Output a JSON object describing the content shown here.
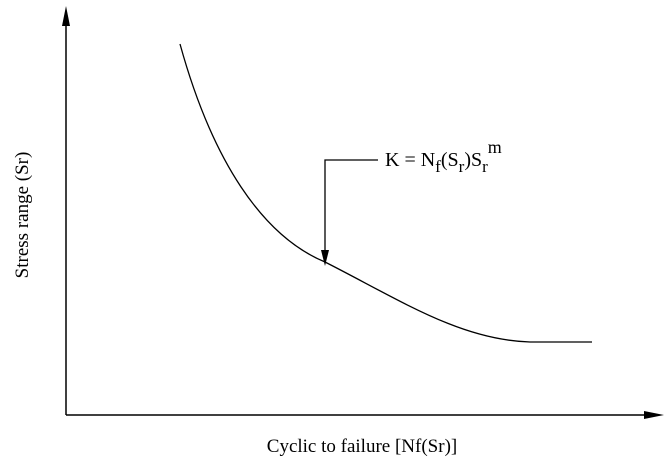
{
  "x_axis_label": "Cyclic to failure [Nf(Sr)]",
  "y_axis_label": "Stress range (Sr)",
  "annotation": [
    "K = N",
    "f",
    "(S",
    "r",
    ")S",
    "r",
    "m"
  ]
}
